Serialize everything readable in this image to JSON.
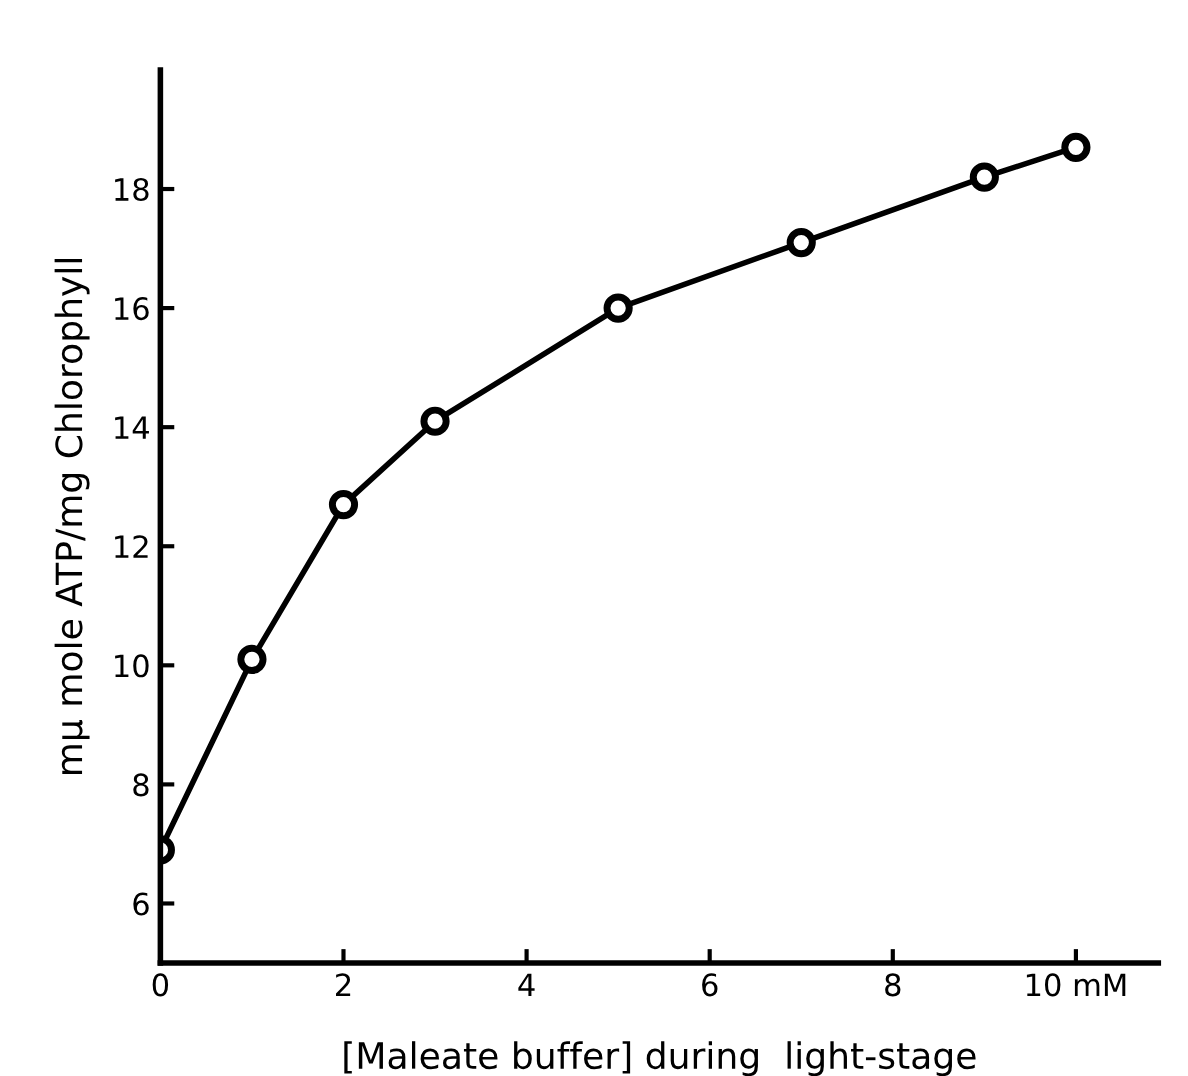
{
  "chart_data": {
    "type": "line",
    "xlabel": "[Maleate buffer] during  light-stage",
    "ylabel": "mμ mole ATP/mg Chlorophyll",
    "x": [
      0,
      1,
      2,
      3,
      5,
      7,
      9,
      10
    ],
    "series": [
      {
        "color": "#000000",
        "values": [
          6.9,
          10.1,
          12.7,
          14.1,
          16.0,
          17.1,
          18.2,
          18.7
        ]
      }
    ],
    "xlim": [
      0,
      10.9
    ],
    "ylim": [
      5,
      20
    ],
    "xticks": [
      0,
      2,
      4,
      6,
      8,
      {
        "value": 10,
        "label": "10 mM"
      }
    ],
    "yticks": [
      6,
      8,
      10,
      12,
      14,
      16,
      18
    ],
    "marker": "circle",
    "line_style": "solid",
    "grid": false,
    "legend": false
  }
}
